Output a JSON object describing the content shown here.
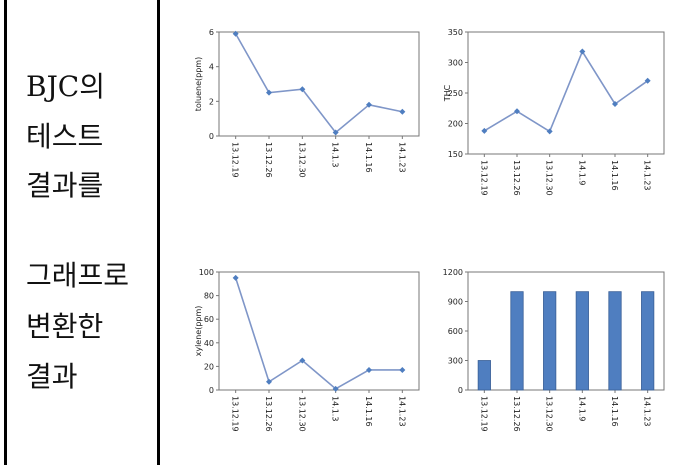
{
  "side_caption": {
    "lines": [
      "BJC의",
      "테스트",
      "결과를",
      "그래프로",
      "변환한",
      "결과"
    ]
  },
  "colors": {
    "line": "#7f96c8",
    "marker": "#4f7ec0",
    "bar": "#4f7ec0",
    "bar_edge": "#3a5f96"
  },
  "chart_data": [
    {
      "type": "line",
      "ylabel": "toluene(ppm)",
      "categories": [
        "13.12.19",
        "13.12.26",
        "13.12.30",
        "14.1.3",
        "14.1.16",
        "14.1.23"
      ],
      "values": [
        5.9,
        2.5,
        2.7,
        0.2,
        1.8,
        1.4
      ],
      "ylim": [
        0,
        6
      ],
      "yticks": [
        0,
        2,
        4,
        6
      ],
      "ytick_labels": [
        "0",
        "2",
        "4",
        "6"
      ]
    },
    {
      "type": "line",
      "ylabel": "THC",
      "categories": [
        "13.12.19",
        "13.12.26",
        "13.12.30",
        "14.1.9",
        "14.1.16",
        "14.1.23"
      ],
      "values": [
        188,
        220,
        187,
        318,
        232,
        270
      ],
      "ylim": [
        150,
        350
      ],
      "yticks": [
        150,
        200,
        250,
        300,
        350
      ],
      "ytick_labels": [
        "150",
        "200",
        "250",
        "300",
        "350"
      ]
    },
    {
      "type": "line",
      "ylabel": "xylene(ppm)",
      "categories": [
        "13.12.19",
        "13.12.26",
        "13.12.30",
        "14.1.3",
        "14.1.16",
        "14.1.23"
      ],
      "values": [
        95,
        7,
        25,
        1,
        17,
        17
      ],
      "ylim": [
        0,
        100
      ],
      "yticks": [
        0,
        20,
        40,
        60,
        80,
        100
      ],
      "ytick_labels": [
        "0",
        "20",
        "40",
        "60",
        "80",
        "100"
      ]
    },
    {
      "type": "bar",
      "ylabel": "",
      "categories": [
        "13.12.19",
        "13.12.26",
        "13.12.30",
        "14.1.9",
        "14.1.16",
        "14.1.23"
      ],
      "values": [
        300,
        1000,
        1000,
        1000,
        1000,
        1000
      ],
      "ylim": [
        0,
        1200
      ],
      "yticks": [
        0,
        300,
        600,
        900,
        1200
      ],
      "ytick_labels": [
        "0",
        "300",
        "600",
        "900",
        "1200"
      ]
    }
  ]
}
